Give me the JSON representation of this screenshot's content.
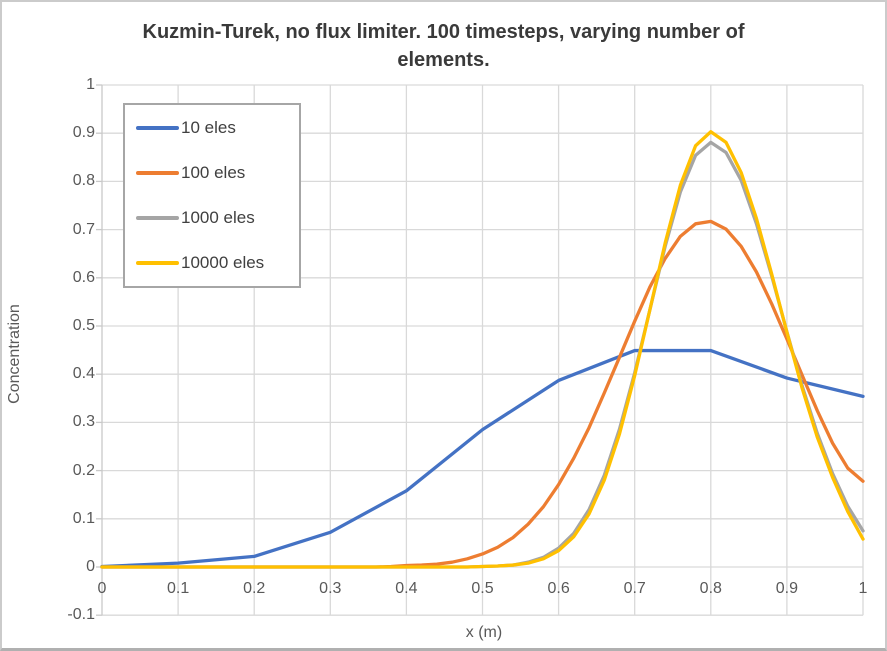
{
  "chart": {
    "title_line1": "Kuzmin-Turek, no flux limiter. 100 timesteps, varying number of",
    "title_line2": "elements.",
    "xlabel": "x (m)",
    "ylabel": "Concentration"
  },
  "chart_data": {
    "type": "line",
    "title": "Kuzmin-Turek, no flux limiter. 100 timesteps, varying number of elements.",
    "xlabel": "x (m)",
    "ylabel": "Concentration",
    "xlim": [
      0,
      1
    ],
    "ylim": [
      -0.1,
      1
    ],
    "x_ticks": [
      0,
      0.1,
      0.2,
      0.3,
      0.4,
      0.5,
      0.6,
      0.7,
      0.8,
      0.9,
      1
    ],
    "y_ticks": [
      -0.1,
      0,
      0.1,
      0.2,
      0.3,
      0.4,
      0.5,
      0.6,
      0.7,
      0.8,
      0.9,
      1
    ],
    "grid": true,
    "legend_position": "inside-top-left",
    "gridline_color": "#d9d9d9",
    "axis_color": "#c9c9c9",
    "series": [
      {
        "name": "10 eles",
        "color": "#4472C4",
        "x": [
          0,
          0.1,
          0.2,
          0.3,
          0.4,
          0.5,
          0.6,
          0.7,
          0.8,
          0.9,
          1
        ],
        "y": [
          0.001,
          0.008,
          0.022,
          0.072,
          0.158,
          0.285,
          0.387,
          0.449,
          0.449,
          0.392,
          0.354
        ]
      },
      {
        "name": "100 eles",
        "color": "#ED7D31",
        "x": [
          0,
          0.02,
          0.04,
          0.06,
          0.08,
          0.1,
          0.12,
          0.14,
          0.16,
          0.18,
          0.2,
          0.22,
          0.24,
          0.26,
          0.28,
          0.3,
          0.32,
          0.34,
          0.36,
          0.38,
          0.4,
          0.42,
          0.44,
          0.46,
          0.48,
          0.5,
          0.52,
          0.54,
          0.56,
          0.58,
          0.6,
          0.62,
          0.64,
          0.66,
          0.68,
          0.7,
          0.72,
          0.74,
          0.76,
          0.78,
          0.8,
          0.82,
          0.84,
          0.86,
          0.88,
          0.9,
          0.92,
          0.94,
          0.96,
          0.98,
          1
        ],
        "y": [
          0,
          0,
          0,
          0,
          0,
          0,
          0,
          0,
          0,
          0,
          0,
          0,
          0,
          0,
          0,
          0,
          0,
          0,
          0,
          0.001,
          0.003,
          0.004,
          0.006,
          0.01,
          0.017,
          0.027,
          0.041,
          0.061,
          0.089,
          0.125,
          0.171,
          0.226,
          0.289,
          0.361,
          0.435,
          0.51,
          0.581,
          0.64,
          0.686,
          0.712,
          0.717,
          0.701,
          0.665,
          0.612,
          0.546,
          0.473,
          0.398,
          0.324,
          0.257,
          0.205,
          0.178
        ]
      },
      {
        "name": "1000 eles",
        "color": "#A5A5A5",
        "x": [
          0,
          0.02,
          0.04,
          0.06,
          0.08,
          0.1,
          0.12,
          0.14,
          0.16,
          0.18,
          0.2,
          0.22,
          0.24,
          0.26,
          0.28,
          0.3,
          0.32,
          0.34,
          0.36,
          0.38,
          0.4,
          0.42,
          0.44,
          0.46,
          0.48,
          0.5,
          0.52,
          0.54,
          0.56,
          0.58,
          0.6,
          0.62,
          0.64,
          0.66,
          0.68,
          0.7,
          0.72,
          0.74,
          0.76,
          0.78,
          0.8,
          0.82,
          0.84,
          0.86,
          0.88,
          0.9,
          0.92,
          0.94,
          0.96,
          0.98,
          1
        ],
        "y": [
          0,
          0,
          0,
          0,
          0,
          0,
          0,
          0,
          0,
          0,
          0,
          0,
          0,
          0,
          0,
          0,
          0,
          0,
          0,
          0,
          0,
          0,
          0,
          0,
          0,
          0.001,
          0.002,
          0.004,
          0.01,
          0.02,
          0.039,
          0.07,
          0.119,
          0.19,
          0.286,
          0.403,
          0.534,
          0.665,
          0.778,
          0.854,
          0.881,
          0.86,
          0.802,
          0.712,
          0.604,
          0.488,
          0.376,
          0.277,
          0.194,
          0.126,
          0.075
        ]
      },
      {
        "name": "10000 eles",
        "color": "#FFC000",
        "x": [
          0,
          0.02,
          0.04,
          0.06,
          0.08,
          0.1,
          0.12,
          0.14,
          0.16,
          0.18,
          0.2,
          0.22,
          0.24,
          0.26,
          0.28,
          0.3,
          0.32,
          0.34,
          0.36,
          0.38,
          0.4,
          0.42,
          0.44,
          0.46,
          0.48,
          0.5,
          0.52,
          0.54,
          0.56,
          0.58,
          0.6,
          0.62,
          0.64,
          0.66,
          0.68,
          0.7,
          0.72,
          0.74,
          0.76,
          0.78,
          0.8,
          0.82,
          0.84,
          0.86,
          0.88,
          0.9,
          0.92,
          0.94,
          0.96,
          0.98,
          1
        ],
        "y": [
          0,
          0,
          0,
          0,
          0,
          0,
          0,
          0,
          0,
          0,
          0,
          0,
          0,
          0,
          0,
          0,
          0,
          0,
          0,
          0,
          0,
          0,
          0,
          0,
          0,
          0.001,
          0.002,
          0.004,
          0.008,
          0.017,
          0.034,
          0.063,
          0.11,
          0.18,
          0.276,
          0.397,
          0.534,
          0.672,
          0.792,
          0.874,
          0.903,
          0.881,
          0.818,
          0.723,
          0.608,
          0.487,
          0.371,
          0.269,
          0.186,
          0.115,
          0.058
        ]
      }
    ]
  }
}
